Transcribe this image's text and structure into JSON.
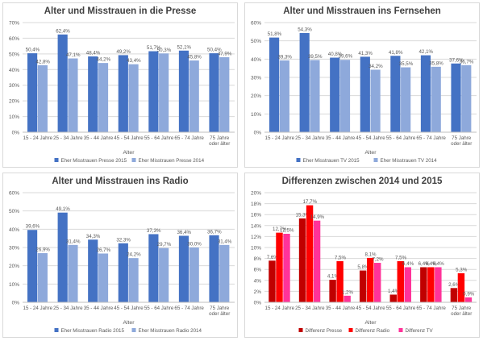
{
  "colors": {
    "dark_blue": "#4472C4",
    "light_blue": "#8EA9DB",
    "diff_presse": "#C00000",
    "diff_radio": "#FF0000",
    "diff_tv": "#FF3399",
    "grid": "#d9d9d9",
    "text": "#595959"
  },
  "chart_data": [
    {
      "type": "bar",
      "title": "Alter und Misstrauen in die Presse",
      "xlabel": "Alter",
      "ylabel": "",
      "ylim": [
        0,
        70
      ],
      "yticks": [
        "0%",
        "10%",
        "20%",
        "30%",
        "40%",
        "50%",
        "60%",
        "70%"
      ],
      "categories": [
        "15 - 24 Jahre",
        "25 - 34 Jahre",
        "35 - 44 Jahre",
        "45 - 54 Jahre",
        "55 - 64 Jahre",
        "65 - 74 Jahre",
        "75 Jahre oder älter"
      ],
      "series": [
        {
          "name": "Eher Misstrauen Presse 2015",
          "values": [
            50.4,
            62.4,
            48.4,
            49.2,
            51.7,
            52.1,
            50.4
          ],
          "labels": [
            "50,4%",
            "62,4%",
            "48,4%",
            "49,2%",
            "51,7%",
            "52,1%",
            "50,4%"
          ]
        },
        {
          "name": "Eher Misstrauen Presse 2014",
          "values": [
            42.8,
            47.1,
            44.2,
            43.4,
            50.3,
            45.8,
            47.9
          ],
          "labels": [
            "42,8%",
            "47,1%",
            "44,2%",
            "43,4%",
            "50,3%",
            "45,8%",
            "47,9%"
          ]
        }
      ],
      "legend": "bottom"
    },
    {
      "type": "bar",
      "title": "Alter und Misstrauen ins Fernsehen",
      "xlabel": "Alter",
      "ylabel": "",
      "ylim": [
        0,
        60
      ],
      "yticks": [
        "0%",
        "10%",
        "20%",
        "30%",
        "40%",
        "50%",
        "60%"
      ],
      "categories": [
        "15 - 24 Jahre",
        "25 - 34 Jahre",
        "35 - 44 Jahre",
        "45 - 54 Jahre",
        "55 - 64 Jahre",
        "65 - 74 Jahre",
        "75 Jahre oder älter"
      ],
      "series": [
        {
          "name": "Eher Misstrauen TV 2015",
          "values": [
            51.8,
            54.3,
            40.8,
            41.3,
            41.8,
            42.1,
            37.6
          ],
          "labels": [
            "51,8%",
            "54,3%",
            "40,8%",
            "41,3%",
            "41,8%",
            "42,1%",
            "37,6%"
          ]
        },
        {
          "name": "Eher Misstrauen TV 2014",
          "values": [
            39.3,
            39.5,
            39.6,
            34.2,
            35.5,
            35.8,
            36.7
          ],
          "labels": [
            "39,3%",
            "39,5%",
            "39,6%",
            "34,2%",
            "35,5%",
            "35,8%",
            "36,7%"
          ]
        }
      ],
      "legend": "bottom"
    },
    {
      "type": "bar",
      "title": "Alter und Misstrauen ins Radio",
      "xlabel": "Alter",
      "ylabel": "",
      "ylim": [
        0,
        60
      ],
      "yticks": [
        "0%",
        "10%",
        "20%",
        "30%",
        "40%",
        "50%",
        "60%"
      ],
      "categories": [
        "15 - 24 Jahre",
        "25 - 34 Jahre",
        "35 - 44 Jahre",
        "45 - 54 Jahre",
        "55 - 64 Jahre",
        "65 - 74 Jahre",
        "75 Jahre oder älter"
      ],
      "series": [
        {
          "name": "Eher Misstrauen Radio 2015",
          "values": [
            39.6,
            49.1,
            34.3,
            32.3,
            37.3,
            36.4,
            36.7
          ],
          "labels": [
            "39,6%",
            "49,1%",
            "34,3%",
            "32,3%",
            "37,3%",
            "36,4%",
            "36,7%"
          ]
        },
        {
          "name": "Eher Misstrauen Radio 2014",
          "values": [
            26.9,
            31.4,
            26.7,
            24.2,
            29.7,
            30.0,
            31.4
          ],
          "labels": [
            "26,9%",
            "31,4%",
            "26,7%",
            "24,2%",
            "29,7%",
            "30,0%",
            "31,4%"
          ]
        }
      ],
      "legend": "bottom"
    },
    {
      "type": "bar",
      "title": "Differenzen zwischen 2014 und 2015",
      "xlabel": "Alter",
      "ylabel": "",
      "ylim": [
        0,
        20
      ],
      "yticks": [
        "0%",
        "2%",
        "4%",
        "6%",
        "8%",
        "10%",
        "12%",
        "14%",
        "16%",
        "18%",
        "20%"
      ],
      "categories": [
        "15 - 24 Jahre",
        "25 - 34 Jahre",
        "35 - 44 Jahre",
        "45 - 54 Jahre",
        "55 - 64 Jahre",
        "65 - 74 Jahre",
        "75 Jahre oder älter"
      ],
      "series": [
        {
          "name": "Differenz Presse",
          "values": [
            7.6,
            15.3,
            4.1,
            5.8,
            1.4,
            6.4,
            2.6
          ],
          "labels": [
            "7,6%",
            "15,3%",
            "4,1%",
            "5,8%",
            "1,4%",
            "6,4%",
            "2,6%"
          ]
        },
        {
          "name": "Differenz Radio",
          "values": [
            12.7,
            17.7,
            7.5,
            8.1,
            7.5,
            6.4,
            5.3
          ],
          "labels": [
            "12,7%",
            "17,7%",
            "7,5%",
            "8,1%",
            "7,5%",
            "6,4%",
            "5,3%"
          ]
        },
        {
          "name": "Differenz TV",
          "values": [
            12.5,
            14.9,
            1.2,
            7.2,
            6.4,
            6.4,
            0.9
          ],
          "labels": [
            "12,5%",
            "14,9%",
            "1,2%",
            "7,2%",
            "6,4%",
            "6,4%",
            "0,9%"
          ]
        }
      ],
      "legend": "bottom"
    }
  ]
}
